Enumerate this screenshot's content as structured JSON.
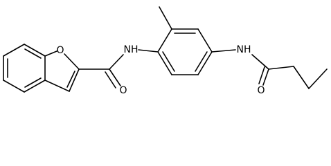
{
  "atoms": [
    {
      "label": "O"
    },
    {
      "label": "O"
    },
    {
      "label": "NH"
    },
    {
      "label": "NH"
    },
    {
      "label": "O"
    }
  ]
}
